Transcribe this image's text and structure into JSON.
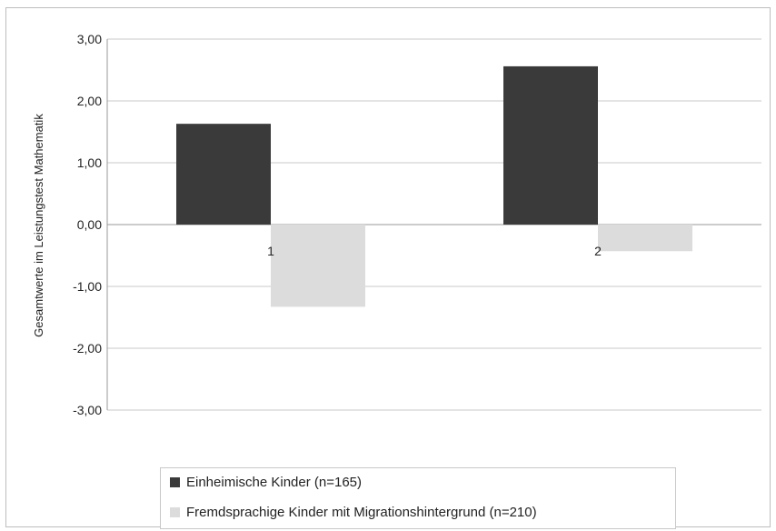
{
  "chart_data": {
    "type": "bar",
    "categories": [
      "1",
      "2"
    ],
    "series": [
      {
        "name": "Einheimische Kinder (n=165)",
        "values": [
          1.63,
          2.56
        ],
        "color": "#3a3a3a"
      },
      {
        "name": "Fremdsprachige Kinder mit Migrationshintergrund (n=210)",
        "values": [
          -1.33,
          -0.43
        ],
        "color": "#dcdcdc"
      }
    ],
    "ylabel": "Gesamtwerte im Leistungstest Mathematik",
    "ylim": [
      -3,
      3
    ],
    "yticks": [
      3,
      2,
      1,
      0,
      -1,
      -2,
      -3
    ],
    "ytick_labels": [
      "3,00",
      "2,00",
      "1,00",
      "0,00",
      "-1,00",
      "-2,00",
      "-3,00"
    ],
    "grid": true,
    "legend_position": "bottom"
  }
}
